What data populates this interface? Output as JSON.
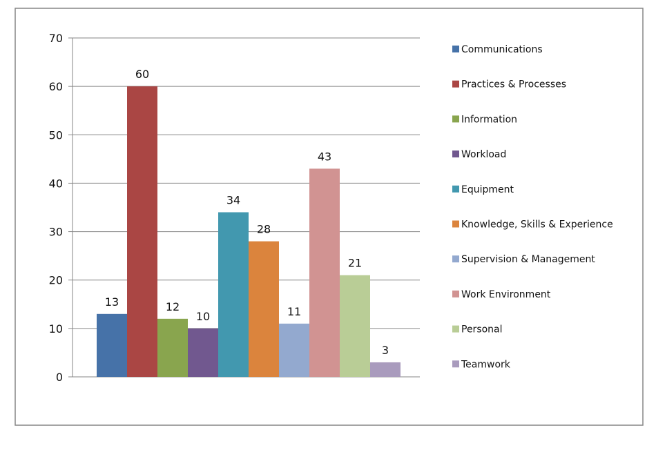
{
  "chart_data": {
    "type": "bar",
    "series": [
      {
        "name": "Communications",
        "value": 13,
        "color": "#4672A8"
      },
      {
        "name": "Practices & Processes",
        "value": 60,
        "color": "#AA4644"
      },
      {
        "name": "Information",
        "value": 12,
        "color": "#89A54E"
      },
      {
        "name": "Workload",
        "value": 10,
        "color": "#71588F"
      },
      {
        "name": "Equipment",
        "value": 34,
        "color": "#4298AF"
      },
      {
        "name": "Knowledge, Skills & Experience",
        "value": 28,
        "color": "#DB843D"
      },
      {
        "name": "Supervision & Management",
        "value": 11,
        "color": "#93A9CF"
      },
      {
        "name": "Work Environment",
        "value": 43,
        "color": "#D19392"
      },
      {
        "name": "Personal",
        "value": 21,
        "color": "#B9CD96"
      },
      {
        "name": "Teamwork",
        "value": 3,
        "color": "#A99BBD"
      }
    ],
    "yticks": [
      "0",
      "10",
      "20",
      "30",
      "40",
      "50",
      "60",
      "70"
    ],
    "ylim": [
      0,
      70
    ],
    "grid": true,
    "legend_position": "right"
  }
}
